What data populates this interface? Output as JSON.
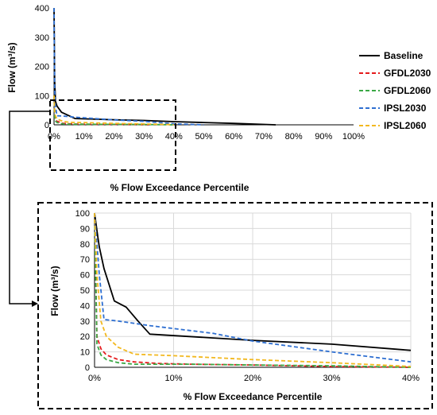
{
  "chart_data": [
    {
      "type": "line",
      "xlabel": "% Flow Exceedance Percentile",
      "ylabel": "Flow (m³/s)",
      "xlim": [
        0,
        100
      ],
      "ylim": [
        0,
        400
      ],
      "x_ticks": [
        "0%",
        "10%",
        "20%",
        "30%",
        "40%",
        "50%",
        "60%",
        "70%",
        "80%",
        "90%",
        "100%"
      ],
      "y_ticks": [
        "0",
        "100",
        "200",
        "300",
        "400"
      ],
      "grid": false,
      "legend": "right",
      "series": [
        {
          "name": "Baseline",
          "color": "#000000",
          "dash": "solid",
          "x": [
            0,
            0.2,
            0.5,
            1,
            2.5,
            7,
            20,
            30,
            40,
            50,
            60,
            74
          ],
          "y": [
            400,
            150,
            80,
            64,
            43,
            21.5,
            17.5,
            15,
            11,
            8,
            5,
            0
          ]
        },
        {
          "name": "GFDL2030",
          "color": "#e41a1c",
          "dash": "dashed",
          "x": [
            0,
            0.3,
            1,
            3,
            6,
            10,
            20,
            30,
            32
          ],
          "y": [
            100,
            20,
            12,
            5,
            3,
            2,
            1,
            0.5,
            0
          ]
        },
        {
          "name": "GFDL2060",
          "color": "#3aa845",
          "dash": "dashed",
          "x": [
            0,
            0.3,
            1,
            3,
            6,
            10,
            20,
            30,
            40
          ],
          "y": [
            100,
            15,
            8,
            3,
            2,
            2,
            1.5,
            1,
            0
          ]
        },
        {
          "name": "IPSL2030",
          "color": "#2e6fd1",
          "dash": "dashed",
          "x": [
            0,
            0.2,
            0.5,
            1,
            3,
            7,
            20,
            30,
            40,
            50
          ],
          "y": [
            400,
            120,
            60,
            31,
            30,
            26,
            17,
            12,
            3.5,
            0
          ]
        },
        {
          "name": "IPSL2060",
          "color": "#f2b81f",
          "dash": "dashed",
          "x": [
            0,
            0.2,
            0.5,
            1,
            3,
            5,
            10,
            20,
            30,
            40
          ],
          "y": [
            100,
            50,
            30,
            20,
            12,
            8.5,
            7.5,
            5,
            3,
            0.5
          ]
        }
      ]
    },
    {
      "type": "line",
      "xlabel": "% Flow Exceedance Percentile",
      "ylabel": "Flow (m³/s)",
      "xlim": [
        0,
        40
      ],
      "ylim": [
        0,
        100
      ],
      "x_ticks": [
        "0%",
        "10%",
        "20%",
        "30%",
        "40%"
      ],
      "y_ticks": [
        "0",
        "10",
        "20",
        "30",
        "40",
        "50",
        "60",
        "70",
        "80",
        "90",
        "100"
      ],
      "grid": true,
      "series": [
        {
          "name": "Baseline",
          "color": "#000000",
          "dash": "solid",
          "x": [
            0,
            0.4,
            0.6,
            1.2,
            2.5,
            4,
            5.5,
            7,
            20,
            30,
            40
          ],
          "y": [
            100,
            85,
            78,
            64,
            43,
            39,
            30,
            21.5,
            17.5,
            15,
            11
          ]
        },
        {
          "name": "GFDL2030",
          "color": "#e41a1c",
          "dash": "dashed",
          "x": [
            0,
            0.3,
            0.8,
            1.5,
            3,
            5,
            8,
            12,
            20,
            30,
            40
          ],
          "y": [
            100,
            20,
            12,
            8,
            5,
            3.5,
            2.5,
            2,
            1.5,
            0.5,
            0
          ]
        },
        {
          "name": "GFDL2060",
          "color": "#3aa845",
          "dash": "dashed",
          "x": [
            0,
            0.3,
            0.8,
            1.5,
            3,
            5,
            8,
            12,
            20,
            30,
            40
          ],
          "y": [
            100,
            15,
            8,
            5,
            3,
            2,
            2,
            2,
            1.5,
            1,
            0
          ]
        },
        {
          "name": "IPSL2030",
          "color": "#2e6fd1",
          "dash": "dashed",
          "x": [
            0,
            0.3,
            0.6,
            1.2,
            3,
            7,
            15,
            20,
            30,
            40
          ],
          "y": [
            100,
            80,
            60,
            31,
            30,
            27,
            22,
            17,
            10,
            3.5
          ]
        },
        {
          "name": "IPSL2060",
          "color": "#f2b81f",
          "dash": "dashed",
          "x": [
            0,
            0.3,
            0.8,
            1.5,
            3,
            5,
            10,
            20,
            30,
            40
          ],
          "y": [
            100,
            60,
            30,
            20,
            13,
            8.5,
            7.5,
            5,
            3,
            0.5
          ]
        }
      ]
    }
  ]
}
